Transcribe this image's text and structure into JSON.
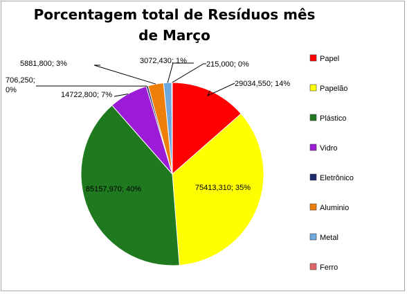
{
  "chart_data": {
    "type": "pie",
    "title": "Porcentagem  total de Resíduos mês de Março",
    "legend_position": "right",
    "slices": [
      {
        "name": "Papel",
        "value": 29034.55,
        "label": "29034,550; 14%",
        "color": "#ff0000"
      },
      {
        "name": "Papelão",
        "value": 75413.31,
        "label": "75413,310; 35%",
        "color": "#ffff00"
      },
      {
        "name": "Plástico",
        "value": 85157.97,
        "label": "85157,970; 40%",
        "color": "#1f7a1f"
      },
      {
        "name": "Vidro",
        "value": 14722.8,
        "label": "14722,800; 7%",
        "color": "#9b1bd6"
      },
      {
        "name": "Eletrônico",
        "value": 706.25,
        "label": "706,250; 0%",
        "color": "#1a2a6c"
      },
      {
        "name": "Aluminio",
        "value": 5881.8,
        "label": "5881,800; 3%",
        "color": "#f07f09"
      },
      {
        "name": "Metal",
        "value": 3072.43,
        "label": "3072,430; 1%",
        "color": "#6fa8dc"
      },
      {
        "name": "Ferro",
        "value": 215.0,
        "label": "215,000; 0%",
        "color": "#e06666"
      }
    ]
  }
}
